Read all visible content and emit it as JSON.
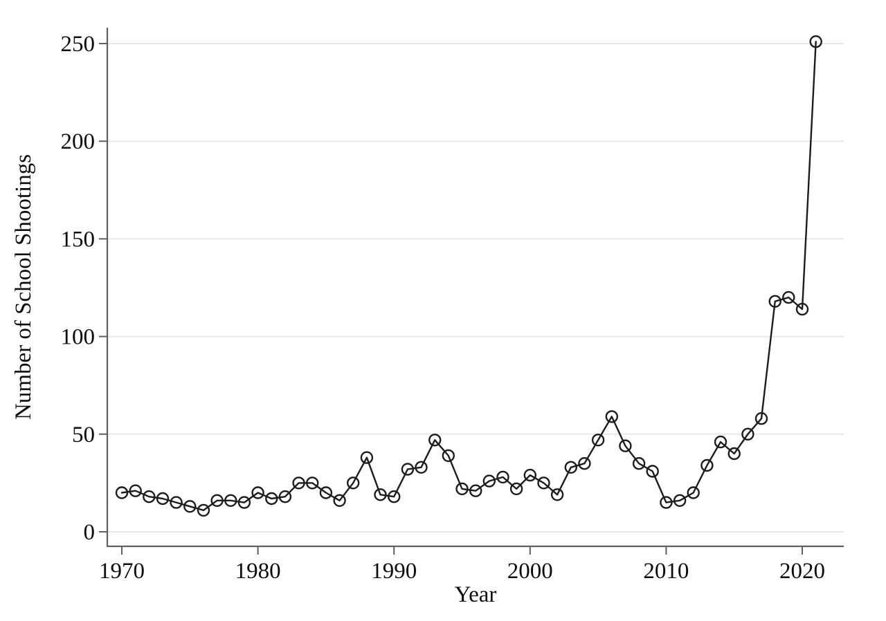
{
  "chart_data": {
    "type": "line",
    "title": "",
    "xlabel": "Year",
    "ylabel": "Number of School Shootings",
    "x": [
      1970,
      1971,
      1972,
      1973,
      1974,
      1975,
      1976,
      1977,
      1978,
      1979,
      1980,
      1981,
      1982,
      1983,
      1984,
      1985,
      1986,
      1987,
      1988,
      1989,
      1990,
      1991,
      1992,
      1993,
      1994,
      1995,
      1996,
      1997,
      1998,
      1999,
      2000,
      2001,
      2002,
      2003,
      2004,
      2005,
      2006,
      2007,
      2008,
      2009,
      2010,
      2011,
      2012,
      2013,
      2014,
      2015,
      2016,
      2017,
      2018,
      2019,
      2020,
      2021
    ],
    "values": [
      20,
      21,
      18,
      17,
      15,
      13,
      11,
      16,
      16,
      15,
      20,
      17,
      18,
      25,
      25,
      20,
      16,
      25,
      38,
      19,
      18,
      32,
      33,
      47,
      39,
      22,
      21,
      26,
      28,
      22,
      29,
      25,
      19,
      33,
      35,
      47,
      59,
      44,
      35,
      31,
      15,
      16,
      20,
      34,
      46,
      40,
      50,
      58,
      118,
      120,
      114,
      251
    ],
    "xticks": [
      1970,
      1980,
      1990,
      2000,
      2010,
      2020
    ],
    "yticks": [
      0,
      50,
      100,
      150,
      200,
      250
    ],
    "ylim": [
      0,
      258
    ],
    "xlim": [
      1969,
      2023
    ],
    "grid": "horizontal-only",
    "legend": "none",
    "marker": "open-circle",
    "series_name": "school-shootings-per-year",
    "colors": {
      "series": "#1c1c1c",
      "axis": "#5f5f5f",
      "grid": "#e8e8e8",
      "text": "#0d0d0d",
      "background": "#ffffff"
    }
  }
}
